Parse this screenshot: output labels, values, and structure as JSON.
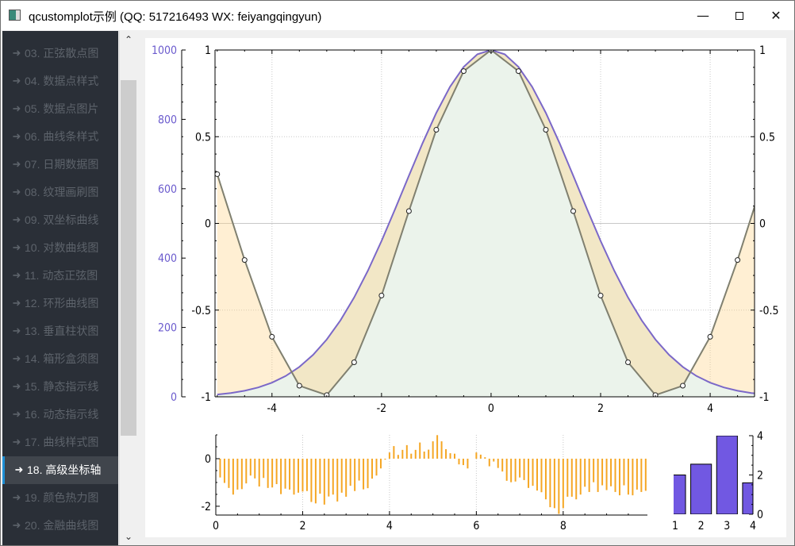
{
  "window": {
    "title": "qcustomplot示例 (QQ: 517216493 WX: feiyangqingyun)",
    "minimize_icon": "minimize-icon",
    "maximize_icon": "maximize-icon",
    "close_icon": "close-icon"
  },
  "sidebar": {
    "selected_index": 15,
    "arrow_icon": "arrow-right-icon",
    "items": [
      {
        "label": "03. 正弦散点图"
      },
      {
        "label": "04. 数据点样式"
      },
      {
        "label": "05. 数据点图片"
      },
      {
        "label": "06. 曲线条样式"
      },
      {
        "label": "07. 日期数据图"
      },
      {
        "label": "08. 纹理画刷图"
      },
      {
        "label": "09. 双坐标曲线"
      },
      {
        "label": "10. 对数曲线图"
      },
      {
        "label": "11. 动态正弦图"
      },
      {
        "label": "12. 环形曲线图"
      },
      {
        "label": "13. 垂直柱状图"
      },
      {
        "label": "14. 箱形盒须图"
      },
      {
        "label": "15. 静态指示线"
      },
      {
        "label": "16. 动态指示线"
      },
      {
        "label": "17. 曲线样式图"
      },
      {
        "label": "18. 高级坐标轴"
      },
      {
        "label": "19. 颜色热力图"
      },
      {
        "label": "20. 金融曲线图"
      }
    ]
  },
  "scrollbar": {
    "up_icon": "chevron-up-icon",
    "down_icon": "chevron-down-icon",
    "up": "⌃",
    "down": "⌄"
  },
  "chart_data": [
    {
      "type": "line",
      "xlim": [
        -5.04,
        4.81
      ],
      "ylim_left": [
        0,
        1000
      ],
      "ylim_right": [
        -1,
        1
      ],
      "x_ticks": [
        "-4",
        "-2",
        "0",
        "2",
        "4"
      ],
      "y_left_ticks": [
        "0",
        "200",
        "400",
        "600",
        "800",
        "1000"
      ],
      "y_right_ticks": [
        "-1",
        "-0.5",
        "0",
        "0.5",
        "1"
      ],
      "colors": {
        "gauss": "#7b68c8",
        "cos": "#808070",
        "left_axis_labels": "#6a5acd",
        "gauss_fill": "#ebf3eb",
        "channel_fill": "#ffd080"
      },
      "grid": true,
      "series": [
        {
          "axis": "left",
          "x": [
            -5,
            -4.75,
            -4.5,
            -4.25,
            -4,
            -3.75,
            -3.5,
            -3.25,
            -3,
            -2.75,
            -2.5,
            -2.25,
            -2,
            -1.75,
            -1.5,
            -1.25,
            -1,
            -0.75,
            -0.5,
            -0.25,
            0,
            0.25,
            0.5,
            0.75,
            1,
            1.25,
            1.5,
            1.75,
            2,
            2.25,
            2.5,
            2.75,
            3,
            3.25,
            3.5,
            3.75,
            4,
            4.25,
            4.5,
            4.75,
            5
          ],
          "values": [
            6.7,
            10.9,
            17.4,
            27.0,
            40.8,
            60.0,
            86.3,
            121.0,
            165.3,
            220.4,
            286.5,
            363.3,
            449.3,
            542.1,
            637.6,
            731.6,
            818.7,
            893.8,
            951.2,
            987.6,
            1000,
            987.6,
            951.2,
            893.8,
            818.7,
            731.6,
            637.6,
            542.1,
            449.3,
            363.3,
            286.5,
            220.4,
            165.3,
            121.0,
            86.3,
            60.0,
            40.8,
            27.0,
            17.4,
            10.9,
            6.7
          ]
        },
        {
          "axis": "right",
          "x": [
            -5,
            -4.5,
            -4,
            -3.5,
            -3,
            -2.5,
            -2,
            -1.5,
            -1,
            -0.5,
            0,
            0.5,
            1,
            1.5,
            2,
            2.5,
            3,
            3.5,
            4,
            4.5,
            5
          ],
          "values": [
            0.284,
            -0.211,
            -0.654,
            -0.936,
            -0.99,
            -0.801,
            -0.416,
            0.071,
            0.54,
            0.878,
            1,
            0.878,
            0.54,
            0.071,
            -0.416,
            -0.801,
            -0.99,
            -0.936,
            -0.654,
            -0.211,
            0.284
          ]
        }
      ]
    },
    {
      "type": "bar",
      "style": "impulse",
      "xlim": [
        0,
        9.94
      ],
      "ylim": [
        -2.37,
        1.0
      ],
      "x_ticks": [
        "0",
        "2",
        "4",
        "6",
        "8"
      ],
      "y_ticks": [
        "0",
        "-2"
      ],
      "color": "#f5a623",
      "x": [
        0.1,
        0.2,
        0.3,
        0.4,
        0.5,
        0.6,
        0.7,
        0.8,
        0.9,
        1.0,
        1.1,
        1.2,
        1.3,
        1.4,
        1.5,
        1.6,
        1.7,
        1.8,
        1.9,
        2.0,
        2.1,
        2.2,
        2.3,
        2.4,
        2.5,
        2.6,
        2.7,
        2.8,
        2.9,
        3.0,
        3.1,
        3.2,
        3.3,
        3.4,
        3.5,
        3.6,
        3.7,
        3.8,
        3.9,
        4.0,
        4.1,
        4.2,
        4.3,
        4.4,
        4.5,
        4.6,
        4.7,
        4.8,
        4.9,
        5.0,
        5.1,
        5.2,
        5.3,
        5.4,
        5.5,
        5.6,
        5.7,
        5.8,
        5.9,
        6.0,
        6.1,
        6.2,
        6.3,
        6.4,
        6.5,
        6.6,
        6.7,
        6.8,
        6.9,
        7.0,
        7.1,
        7.2,
        7.3,
        7.4,
        7.5,
        7.6,
        7.7,
        7.8,
        7.9,
        8.0,
        8.1,
        8.2,
        8.3,
        8.4,
        8.5,
        8.6,
        8.7,
        8.8,
        8.9,
        9.0,
        9.1,
        9.2,
        9.3,
        9.4,
        9.5,
        9.6,
        9.7,
        9.8,
        9.9
      ],
      "values": [
        -0.79,
        -1.02,
        -1.23,
        -1.51,
        -1.3,
        -1.28,
        -1.04,
        -0.71,
        -0.83,
        -1.17,
        -0.81,
        -1.23,
        -1.21,
        -1.07,
        -1.49,
        -1.26,
        -1.3,
        -1.51,
        -1.43,
        -1.38,
        -1.36,
        -1.82,
        -1.88,
        -1.47,
        -1.93,
        -1.59,
        -1.51,
        -1.8,
        -1.43,
        -1.6,
        -1.14,
        -1.36,
        -0.92,
        -1.29,
        -1.24,
        -0.84,
        -0.71,
        -0.41,
        -0.04,
        0.26,
        0.53,
        0.16,
        0.37,
        0.57,
        0.21,
        0.37,
        0.68,
        0.3,
        0.38,
        0.73,
        0.99,
        0.73,
        0.4,
        0.23,
        0.21,
        -0.24,
        -0.27,
        -0.41,
        0.0,
        0.26,
        0.17,
        0.06,
        -0.32,
        -0.12,
        -0.39,
        -0.54,
        -0.93,
        -0.99,
        -0.96,
        -0.79,
        -0.9,
        -1.23,
        -1.14,
        -1.34,
        -1.41,
        -1.71,
        -2.04,
        -2.08,
        -2.32,
        -2.08,
        -1.6,
        -1.6,
        -1.71,
        -1.51,
        -1.18,
        -1.4,
        -0.99,
        -1.4,
        -1.12,
        -1.32,
        -1.16,
        -1.4,
        -1.54,
        -1.12,
        -1.51,
        -1.54,
        -1.3,
        -1.4,
        -1.35
      ]
    },
    {
      "type": "bar",
      "xlim": [
        0.94,
        4.0
      ],
      "ylim": [
        0,
        4
      ],
      "x_ticks": [
        "1",
        "2",
        "3",
        "4"
      ],
      "y_ticks": [
        "0",
        "2",
        "4"
      ],
      "color": "#7158e2",
      "categories": [
        1,
        2,
        3,
        4
      ],
      "values": [
        2.0,
        2.55,
        4.0,
        1.6
      ],
      "bar_width": 0.8
    }
  ]
}
